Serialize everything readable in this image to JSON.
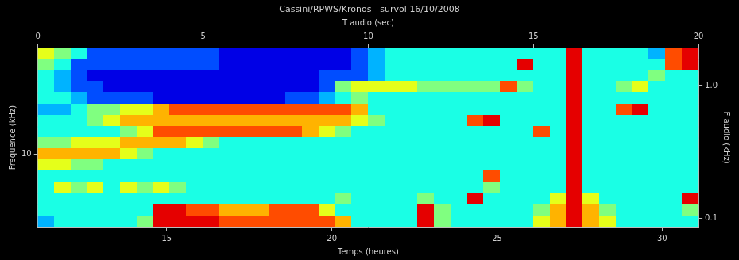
{
  "chart_data": {
    "type": "heatmap",
    "title": "Cassini/RPWS/Kronos - survol 16/10/2008",
    "x_label": "Temps (heures)",
    "x2_label": "T audio (sec)",
    "y_label": "Frequence (kHz)",
    "y2_label": "F audio (kHz)",
    "xlim": [
      11.1,
      31.1
    ],
    "xticks": [
      15,
      20,
      25,
      30
    ],
    "x2lim": [
      0,
      20
    ],
    "x2ticks": [
      0,
      5,
      10,
      15,
      20
    ],
    "ylim": [
      2.8,
      64
    ],
    "yticks": [
      10
    ],
    "y2lim": [
      0.085,
      1.93
    ],
    "y2ticks": [
      {
        "value": 1,
        "label": "1.0"
      },
      0.1
    ],
    "log": "y",
    "grid": false,
    "zlim": [
      0,
      10
    ],
    "x": [
      11.35,
      11.85,
      12.35,
      12.85,
      13.35,
      13.85,
      14.35,
      14.85,
      15.35,
      15.85,
      16.35,
      16.85,
      17.35,
      17.85,
      18.35,
      18.85,
      19.35,
      19.85,
      20.35,
      20.85,
      21.35,
      21.85,
      22.35,
      22.85,
      23.35,
      23.85,
      24.35,
      24.85,
      25.35,
      25.85,
      26.35,
      26.85,
      27.35,
      27.85,
      28.35,
      28.85,
      29.35,
      29.85,
      30.35,
      30.85
    ],
    "y": [
      58,
      47.7,
      39.3,
      32.3,
      26.6,
      21.8,
      18,
      14.8,
      12.2,
      10,
      8.2,
      6.8,
      5.6,
      4.6,
      3.8,
      3.1
    ],
    "z": [
      [
        6,
        5,
        4,
        2,
        2,
        2,
        2,
        2,
        2,
        2,
        2,
        1,
        1,
        1,
        1,
        1,
        1,
        1,
        1,
        2,
        3,
        4,
        4,
        4,
        4,
        4,
        4,
        4,
        4,
        4,
        4,
        4,
        9,
        4,
        4,
        4,
        4,
        3,
        8,
        9
      ],
      [
        5,
        4,
        2,
        2,
        2,
        2,
        2,
        2,
        2,
        2,
        2,
        1,
        1,
        1,
        1,
        1,
        1,
        1,
        1,
        2,
        3,
        4,
        4,
        4,
        4,
        4,
        4,
        4,
        4,
        9,
        4,
        4,
        9,
        4,
        4,
        4,
        4,
        4,
        8,
        9
      ],
      [
        4,
        3,
        2,
        1,
        1,
        1,
        1,
        1,
        1,
        1,
        1,
        1,
        1,
        1,
        1,
        1,
        1,
        2,
        2,
        2,
        3,
        4,
        4,
        4,
        4,
        4,
        4,
        4,
        4,
        4,
        4,
        4,
        9,
        4,
        4,
        4,
        4,
        5,
        4,
        4
      ],
      [
        4,
        3,
        2,
        2,
        1,
        1,
        1,
        1,
        1,
        1,
        1,
        1,
        1,
        1,
        1,
        1,
        1,
        2,
        5,
        6,
        6,
        6,
        6,
        5,
        5,
        5,
        5,
        5,
        8,
        5,
        4,
        4,
        9,
        4,
        4,
        5,
        6,
        4,
        4,
        4
      ],
      [
        4,
        4,
        3,
        2,
        2,
        2,
        2,
        1,
        1,
        1,
        1,
        1,
        1,
        1,
        1,
        2,
        2,
        3,
        4,
        5,
        4,
        4,
        4,
        4,
        4,
        4,
        4,
        4,
        4,
        4,
        4,
        4,
        9,
        4,
        4,
        4,
        4,
        4,
        4,
        4
      ],
      [
        3,
        3,
        4,
        5,
        5,
        6,
        6,
        7,
        8,
        8,
        8,
        8,
        8,
        8,
        8,
        8,
        8,
        8,
        8,
        7,
        4,
        4,
        4,
        4,
        4,
        4,
        4,
        4,
        4,
        4,
        4,
        4,
        9,
        4,
        4,
        8,
        9,
        4,
        4,
        4
      ],
      [
        4,
        4,
        4,
        5,
        6,
        7,
        7,
        7,
        7,
        7,
        7,
        7,
        7,
        7,
        7,
        7,
        7,
        7,
        7,
        6,
        5,
        4,
        4,
        4,
        4,
        4,
        8,
        9,
        4,
        4,
        4,
        4,
        9,
        4,
        4,
        4,
        4,
        4,
        4,
        4
      ],
      [
        4,
        4,
        4,
        4,
        4,
        5,
        6,
        8,
        8,
        8,
        8,
        8,
        8,
        8,
        8,
        8,
        7,
        6,
        5,
        4,
        4,
        4,
        4,
        4,
        4,
        4,
        4,
        4,
        4,
        4,
        8,
        4,
        9,
        4,
        4,
        4,
        4,
        4,
        4,
        4
      ],
      [
        5,
        5,
        6,
        6,
        6,
        7,
        7,
        7,
        7,
        6,
        5,
        4,
        4,
        4,
        4,
        4,
        4,
        4,
        4,
        4,
        4,
        4,
        4,
        4,
        4,
        4,
        4,
        4,
        4,
        4,
        4,
        4,
        9,
        4,
        4,
        4,
        4,
        4,
        4,
        4
      ],
      [
        7,
        7,
        7,
        7,
        7,
        6,
        5,
        4,
        4,
        4,
        4,
        4,
        4,
        4,
        4,
        4,
        4,
        4,
        4,
        4,
        4,
        4,
        4,
        4,
        4,
        4,
        4,
        4,
        4,
        4,
        4,
        4,
        9,
        4,
        4,
        4,
        4,
        4,
        4,
        4
      ],
      [
        6,
        6,
        5,
        5,
        4,
        4,
        4,
        4,
        4,
        4,
        4,
        4,
        4,
        4,
        4,
        4,
        4,
        4,
        4,
        4,
        4,
        4,
        4,
        4,
        4,
        4,
        4,
        4,
        4,
        4,
        4,
        4,
        9,
        4,
        4,
        4,
        4,
        4,
        4,
        4
      ],
      [
        4,
        4,
        4,
        4,
        4,
        4,
        4,
        4,
        4,
        4,
        4,
        4,
        4,
        4,
        4,
        4,
        4,
        4,
        4,
        4,
        4,
        4,
        4,
        4,
        4,
        4,
        4,
        8,
        4,
        4,
        4,
        4,
        9,
        4,
        4,
        4,
        4,
        4,
        4,
        4
      ],
      [
        4,
        6,
        5,
        6,
        4,
        6,
        5,
        6,
        5,
        4,
        4,
        4,
        4,
        4,
        4,
        4,
        4,
        4,
        4,
        4,
        4,
        4,
        4,
        4,
        4,
        4,
        4,
        5,
        4,
        4,
        4,
        4,
        9,
        4,
        4,
        4,
        4,
        4,
        4,
        4
      ],
      [
        4,
        4,
        4,
        4,
        4,
        4,
        4,
        4,
        4,
        4,
        4,
        4,
        4,
        4,
        4,
        4,
        4,
        4,
        5,
        4,
        4,
        4,
        4,
        5,
        4,
        4,
        9,
        4,
        4,
        4,
        4,
        6,
        9,
        6,
        4,
        4,
        4,
        4,
        4,
        9
      ],
      [
        4,
        4,
        4,
        4,
        4,
        4,
        4,
        9,
        9,
        8,
        8,
        7,
        7,
        7,
        8,
        8,
        8,
        6,
        4,
        4,
        4,
        4,
        4,
        9,
        5,
        4,
        4,
        4,
        4,
        4,
        5,
        7,
        9,
        7,
        5,
        4,
        4,
        4,
        4,
        5
      ],
      [
        3,
        4,
        4,
        4,
        4,
        4,
        5,
        9,
        9,
        9,
        9,
        8,
        8,
        8,
        8,
        8,
        8,
        8,
        7,
        4,
        4,
        4,
        4,
        9,
        5,
        4,
        4,
        4,
        4,
        4,
        6,
        7,
        9,
        7,
        6,
        4,
        4,
        4,
        4,
        4
      ]
    ]
  }
}
